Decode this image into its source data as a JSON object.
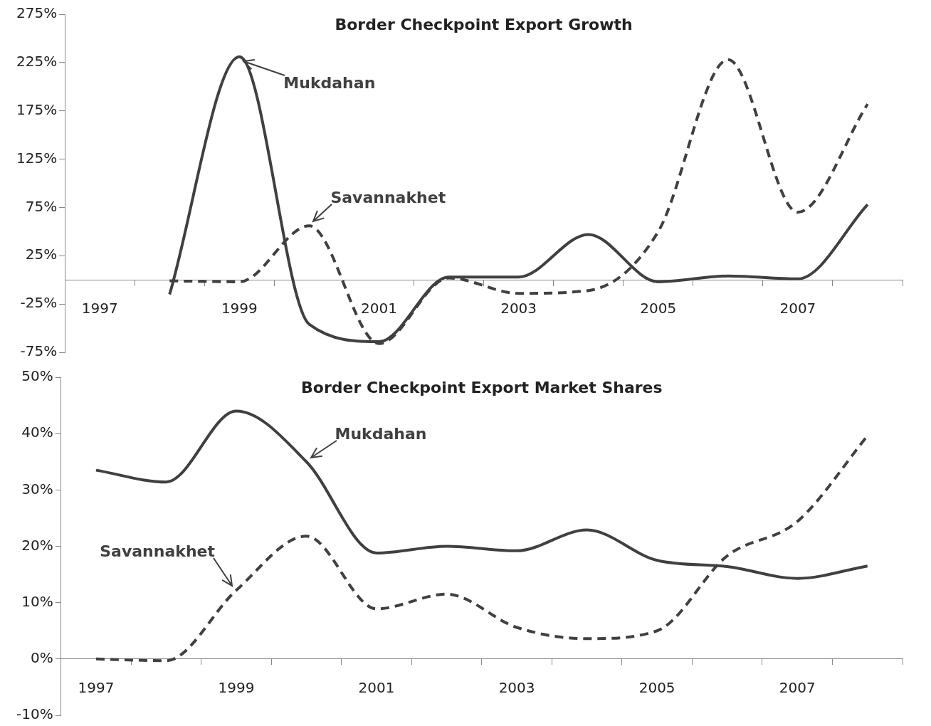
{
  "chart_data": [
    {
      "type": "line",
      "title": "Border Checkpoint Export Growth",
      "categories": [
        "1997",
        null,
        "1999",
        null,
        "2001",
        null,
        "2003",
        null,
        "2005",
        null,
        "2007",
        null
      ],
      "series": [
        {
          "name": "Mukdahan",
          "color": "#404040",
          "line_style": "solid",
          "values": [
            null,
            -15,
            231,
            -46,
            -64,
            3,
            3,
            47,
            -2,
            4,
            1,
            78
          ]
        },
        {
          "name": "Savannakhet",
          "color": "#404040",
          "line_style": "dashed",
          "values": [
            null,
            -1,
            -2,
            56,
            -66,
            2,
            -14,
            -11,
            50,
            228,
            70,
            182
          ]
        }
      ],
      "ylim": [
        -75,
        275
      ],
      "yticks": [
        {
          "value": -75,
          "label": "-75%"
        },
        {
          "value": -25,
          "label": "-25%"
        },
        {
          "value": 25,
          "label": "25%"
        },
        {
          "value": 75,
          "label": "75%"
        },
        {
          "value": 125,
          "label": "125%"
        },
        {
          "value": 175,
          "label": "175%"
        },
        {
          "value": 225,
          "label": "225%"
        },
        {
          "value": 275,
          "label": "275%"
        }
      ],
      "grid": false,
      "legend": false,
      "marker": "none"
    },
    {
      "type": "line",
      "title": "Border Checkpoint Export Market Shares",
      "categories": [
        "1997",
        null,
        "1999",
        null,
        "2001",
        null,
        "2003",
        null,
        "2005",
        null,
        "2007",
        null
      ],
      "series": [
        {
          "name": "Mukdahan",
          "color": "#404040",
          "line_style": "solid",
          "values": [
            33.5,
            31.4,
            44,
            35,
            18.8,
            20,
            19.2,
            22.9,
            17.5,
            16.4,
            14.3,
            16.5
          ]
        },
        {
          "name": "Savannakhet",
          "color": "#404040",
          "line_style": "dashed",
          "values": [
            0,
            -0.3,
            12.2,
            21.8,
            8.9,
            11.5,
            5.6,
            3.6,
            5,
            18.3,
            24.4,
            39.6
          ]
        }
      ],
      "ylim": [
        -10,
        50
      ],
      "yticks": [
        {
          "value": -10,
          "label": "-10%"
        },
        {
          "value": 0,
          "label": "0%"
        },
        {
          "value": 10,
          "label": "10%"
        },
        {
          "value": 20,
          "label": "20%"
        },
        {
          "value": 30,
          "label": "30%"
        },
        {
          "value": 40,
          "label": "40%"
        },
        {
          "value": 50,
          "label": "50%"
        }
      ],
      "grid": false,
      "legend": false,
      "marker": "none"
    }
  ]
}
